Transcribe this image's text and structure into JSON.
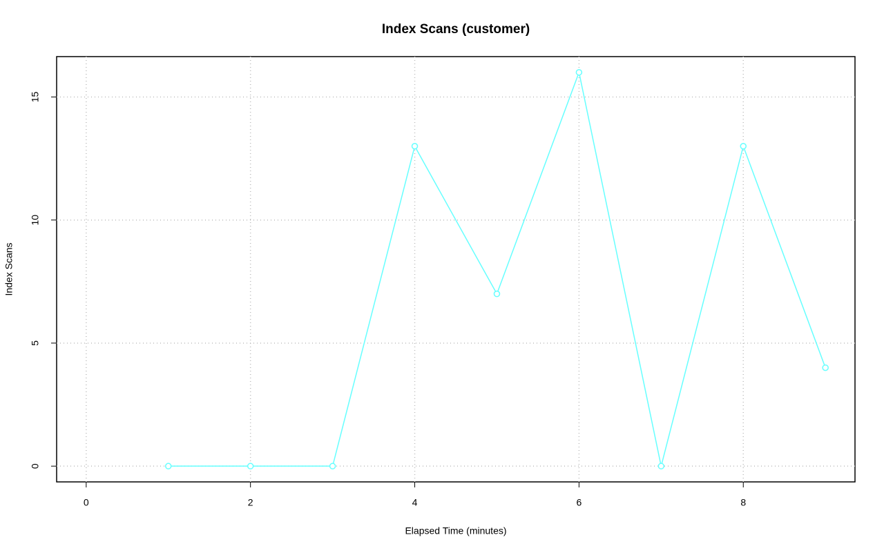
{
  "chart_data": {
    "type": "line",
    "title": "Index Scans (customer)",
    "x_label": "Elapsed Time (minutes)",
    "y_label": "Index Scans",
    "x": [
      1,
      2,
      3,
      4,
      5,
      6,
      7,
      8,
      9
    ],
    "series": [
      {
        "name": "customer",
        "color": "#66ffff",
        "values": [
          0,
          0,
          0,
          13,
          7,
          16,
          0,
          13,
          4
        ]
      }
    ],
    "xlim": [
      -0.36,
      9.36
    ],
    "ylim": [
      -0.64,
      16.64
    ],
    "xticks": [
      0,
      2,
      4,
      6,
      8
    ],
    "yticks": [
      0,
      5,
      10,
      15
    ],
    "grid": true
  }
}
